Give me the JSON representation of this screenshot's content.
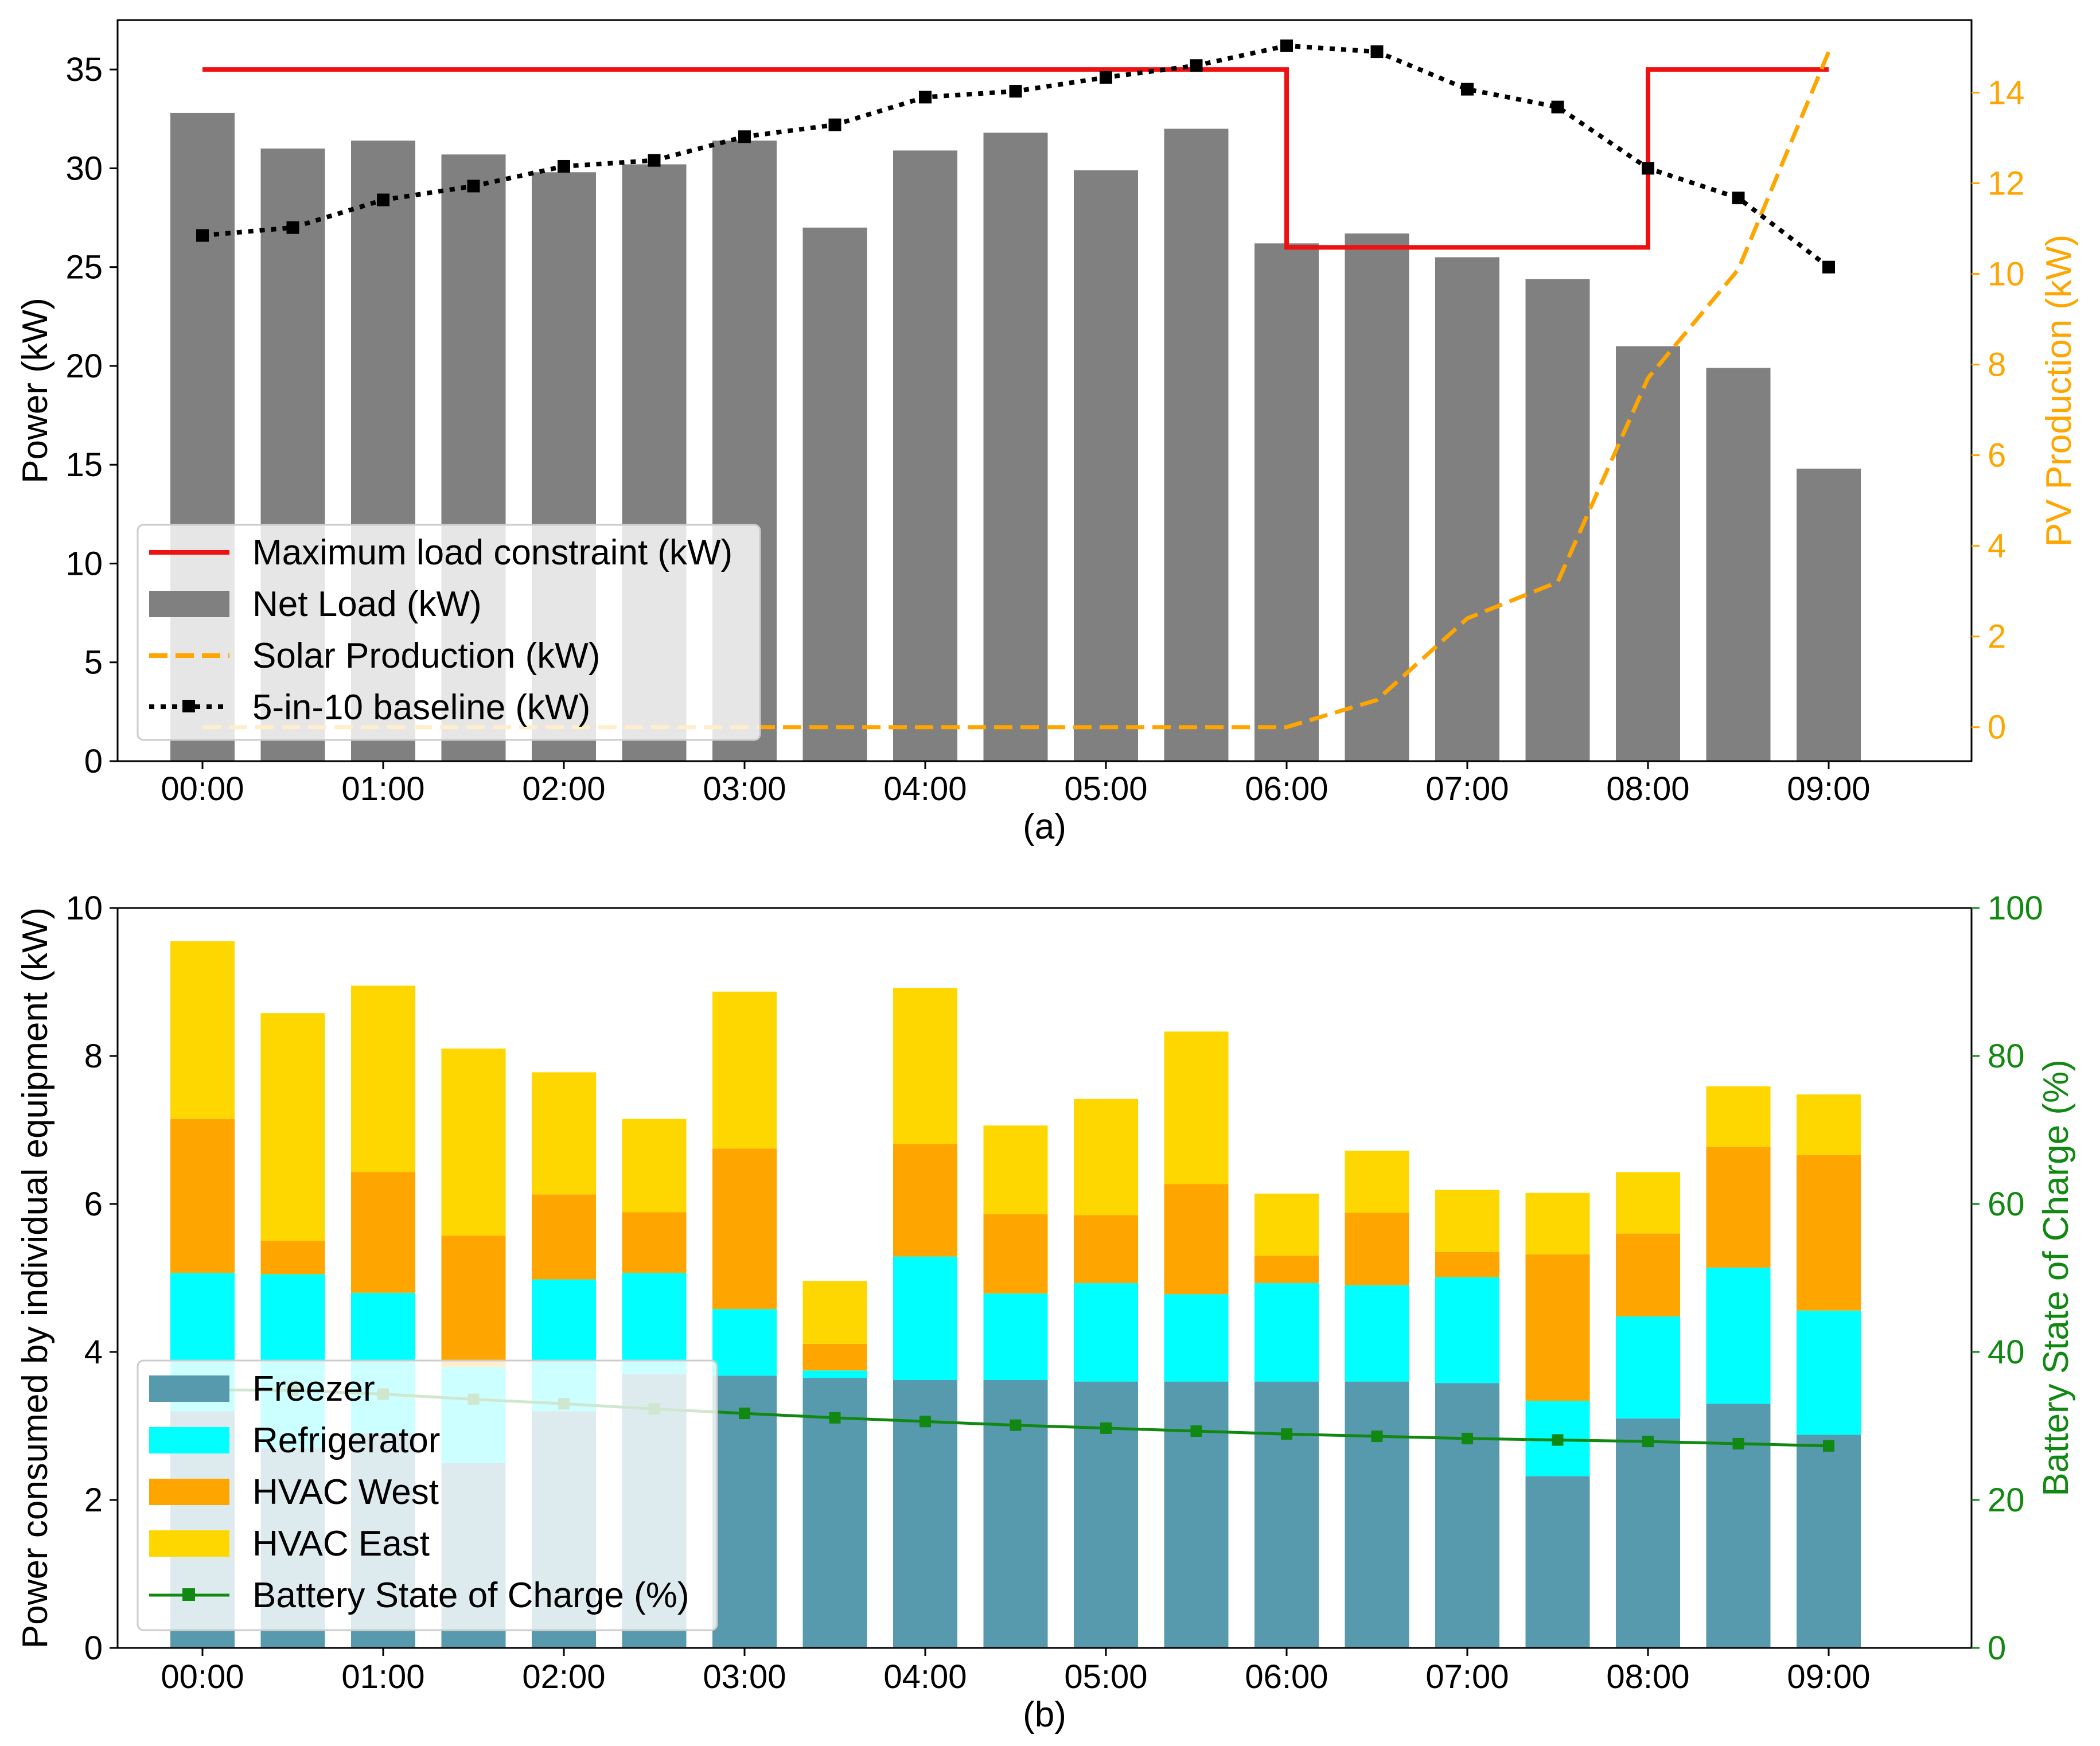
{
  "chart_data": [
    {
      "type": "bar",
      "panel_label": "(a)",
      "x": [
        "00:00",
        "00:30",
        "01:00",
        "01:30",
        "02:00",
        "02:30",
        "03:00",
        "03:30",
        "04:00",
        "04:30",
        "05:00",
        "05:30",
        "06:00",
        "06:30",
        "07:00",
        "07:30",
        "08:00",
        "08:30",
        "09:00"
      ],
      "xtick_labels": [
        "00:00",
        "01:00",
        "02:00",
        "03:00",
        "04:00",
        "05:00",
        "06:00",
        "07:00",
        "08:00",
        "09:00"
      ],
      "ylabel": "Power (kW)",
      "ylim": [
        0,
        37.5
      ],
      "yticks": [
        0,
        5,
        10,
        15,
        20,
        25,
        30,
        35
      ],
      "y2label": "PV Production (kW)",
      "y2lim": [
        -0.75,
        15.6
      ],
      "y2ticks": [
        0,
        2,
        4,
        6,
        8,
        10,
        12,
        14
      ],
      "legend_position": "lower-left",
      "series": [
        {
          "name": "Maximum load constraint (kW)",
          "kind": "step",
          "axis": "left",
          "color": "#ee1111",
          "values": [
            35,
            35,
            35,
            35,
            35,
            35,
            35,
            35,
            35,
            35,
            35,
            35,
            26,
            26,
            26,
            26,
            35,
            35,
            35
          ]
        },
        {
          "name": "Net Load (kW)",
          "kind": "bar",
          "axis": "left",
          "color": "#808080",
          "values": [
            32.8,
            31.0,
            31.4,
            30.7,
            29.8,
            30.2,
            31.4,
            27.0,
            30.9,
            31.8,
            29.9,
            32.0,
            26.2,
            26.7,
            25.5,
            24.4,
            21.0,
            19.9,
            14.8
          ]
        },
        {
          "name": "Solar Production (kW)",
          "kind": "line",
          "axis": "right",
          "color": "#ffa500",
          "values": [
            0,
            0,
            0,
            0,
            0,
            0,
            0,
            0,
            0,
            0,
            0,
            0,
            0,
            0.6,
            2.4,
            3.2,
            7.7,
            10.1,
            14.9
          ]
        },
        {
          "name": "5-in-10 baseline (kW)",
          "kind": "line",
          "axis": "left",
          "color": "#000000",
          "values": [
            26.6,
            27.0,
            28.4,
            29.1,
            30.1,
            30.4,
            31.6,
            32.2,
            33.6,
            33.9,
            34.6,
            35.2,
            36.2,
            35.9,
            34.0,
            33.1,
            30.0,
            28.5,
            25.0
          ]
        }
      ]
    },
    {
      "type": "bar",
      "panel_label": "(b)",
      "x": [
        "00:00",
        "00:30",
        "01:00",
        "01:30",
        "02:00",
        "02:30",
        "03:00",
        "03:30",
        "04:00",
        "04:30",
        "05:00",
        "05:30",
        "06:00",
        "06:30",
        "07:00",
        "07:30",
        "08:00",
        "08:30",
        "09:00"
      ],
      "xtick_labels": [
        "00:00",
        "01:00",
        "02:00",
        "03:00",
        "04:00",
        "05:00",
        "06:00",
        "07:00",
        "08:00",
        "09:00"
      ],
      "ylabel": "Power consumed by individual equipment (kW)",
      "ylim": [
        0,
        10
      ],
      "yticks": [
        0,
        2,
        4,
        6,
        8,
        10
      ],
      "y2label": "Battery State of Charge (%)",
      "y2lim": [
        0,
        100
      ],
      "y2ticks": [
        0,
        20,
        40,
        60,
        80,
        100
      ],
      "legend_position": "lower-left",
      "series": [
        {
          "name": "Freezer",
          "kind": "stacked-bar",
          "axis": "left",
          "color": "#5799ad",
          "values": [
            3.2,
            2.7,
            2.9,
            2.5,
            3.2,
            3.7,
            3.68,
            3.65,
            3.62,
            3.62,
            3.6,
            3.6,
            3.6,
            3.6,
            3.58,
            2.32,
            3.1,
            3.3,
            2.88
          ]
        },
        {
          "name": "Refrigerator",
          "kind": "stacked-bar",
          "axis": "left",
          "color": "#00ffff",
          "values": [
            1.87,
            2.35,
            1.9,
            1.3,
            1.78,
            1.37,
            0.9,
            0.1,
            1.67,
            1.17,
            1.33,
            1.18,
            1.33,
            1.3,
            1.43,
            1.02,
            1.38,
            1.84,
            1.68
          ]
        },
        {
          "name": "HVAC West",
          "kind": "stacked-bar",
          "axis": "left",
          "color": "#ffa500",
          "values": [
            2.08,
            0.45,
            1.63,
            1.77,
            1.15,
            0.82,
            2.17,
            0.36,
            1.52,
            1.07,
            0.92,
            1.49,
            0.37,
            0.98,
            0.34,
            1.98,
            1.12,
            1.63,
            2.1
          ]
        },
        {
          "name": "HVAC East",
          "kind": "stacked-bar",
          "axis": "left",
          "color": "#ffd700",
          "values": [
            2.4,
            3.08,
            2.52,
            2.53,
            1.65,
            1.26,
            2.12,
            0.85,
            2.11,
            1.2,
            1.57,
            2.06,
            0.84,
            0.84,
            0.84,
            0.83,
            0.83,
            0.82,
            0.82
          ]
        },
        {
          "name": "Battery State of Charge (%)",
          "kind": "line",
          "axis": "right",
          "color": "#118811",
          "values": [
            34.9,
            34.8,
            34.3,
            33.6,
            33.0,
            32.3,
            31.7,
            31.1,
            30.6,
            30.1,
            29.7,
            29.3,
            28.9,
            28.6,
            28.3,
            28.1,
            27.9,
            27.6,
            27.3
          ]
        }
      ]
    }
  ]
}
